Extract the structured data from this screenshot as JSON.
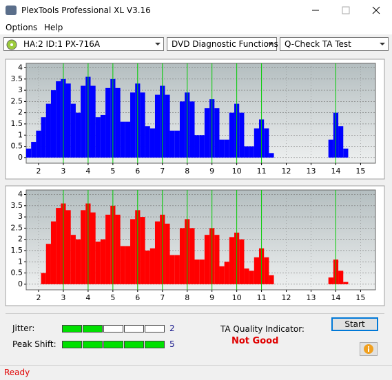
{
  "window": {
    "title": "PlexTools Professional XL V3.16"
  },
  "menu": [
    "Options",
    "Help"
  ],
  "toolbar": {
    "drive": "HA:2 ID:1  PX-716A",
    "function": "DVD Diagnostic Functions",
    "test": "Q-Check TA Test"
  },
  "chart_data": [
    {
      "type": "bar",
      "color": "#0000ff",
      "xlim": [
        1.5,
        15.6
      ],
      "ylim": [
        -0.25,
        4.2
      ],
      "xticks": [
        2,
        3,
        4,
        5,
        6,
        7,
        8,
        9,
        10,
        11,
        12,
        13,
        14,
        15
      ],
      "yticks": [
        0,
        0.5,
        1,
        1.5,
        2,
        2.5,
        3,
        3.5,
        4
      ],
      "grid": true,
      "markers": [
        3,
        4,
        5,
        6,
        7,
        8,
        9,
        10,
        11,
        14
      ],
      "marker_color": "#00cc00",
      "x": [
        1.6,
        1.8,
        2.0,
        2.2,
        2.4,
        2.6,
        2.8,
        3.0,
        3.2,
        3.4,
        3.6,
        3.8,
        4.0,
        4.2,
        4.4,
        4.6,
        4.8,
        5.0,
        5.2,
        5.4,
        5.6,
        5.8,
        6.0,
        6.2,
        6.4,
        6.6,
        6.8,
        7.0,
        7.2,
        7.4,
        7.6,
        7.8,
        8.0,
        8.2,
        8.4,
        8.6,
        8.8,
        9.0,
        9.2,
        9.4,
        9.6,
        9.8,
        10.0,
        10.2,
        10.4,
        10.6,
        10.8,
        11.0,
        11.2,
        11.4,
        13.8,
        14.0,
        14.2,
        14.4
      ],
      "values": [
        0.4,
        0.7,
        1.2,
        1.8,
        2.4,
        3.0,
        3.4,
        3.5,
        3.3,
        2.4,
        2.0,
        3.2,
        3.6,
        3.2,
        1.8,
        1.9,
        3.1,
        3.5,
        3.1,
        1.6,
        1.6,
        2.9,
        3.3,
        2.9,
        1.4,
        1.3,
        2.8,
        3.2,
        2.8,
        1.2,
        1.2,
        2.5,
        2.9,
        2.5,
        1.0,
        1.0,
        2.2,
        2.6,
        2.2,
        0.8,
        0.8,
        2.0,
        2.4,
        2.0,
        0.5,
        0.5,
        1.3,
        1.7,
        1.3,
        0.2,
        0.8,
        2.0,
        1.4,
        0.4
      ]
    },
    {
      "type": "bar",
      "color": "#ff0000",
      "xlim": [
        1.5,
        15.6
      ],
      "ylim": [
        -0.25,
        4.2
      ],
      "xticks": [
        2,
        3,
        4,
        5,
        6,
        7,
        8,
        9,
        10,
        11,
        12,
        13,
        14,
        15
      ],
      "yticks": [
        0,
        0.5,
        1,
        1.5,
        2,
        2.5,
        3,
        3.5,
        4
      ],
      "grid": true,
      "markers": [
        3,
        4,
        5,
        6,
        7,
        8,
        9,
        10,
        11,
        14
      ],
      "marker_color": "#00cc00",
      "x": [
        2.2,
        2.4,
        2.6,
        2.8,
        3.0,
        3.2,
        3.4,
        3.6,
        3.8,
        4.0,
        4.2,
        4.4,
        4.6,
        4.8,
        5.0,
        5.2,
        5.4,
        5.6,
        5.8,
        6.0,
        6.2,
        6.4,
        6.6,
        6.8,
        7.0,
        7.2,
        7.4,
        7.6,
        7.8,
        8.0,
        8.2,
        8.4,
        8.6,
        8.8,
        9.0,
        9.2,
        9.4,
        9.6,
        9.8,
        10.0,
        10.2,
        10.4,
        10.6,
        10.8,
        11.0,
        11.2,
        11.4,
        13.8,
        14.0,
        14.2,
        14.4
      ],
      "values": [
        0.5,
        1.8,
        2.8,
        3.4,
        3.6,
        3.3,
        2.2,
        2.0,
        3.3,
        3.6,
        3.2,
        1.9,
        2.0,
        3.1,
        3.5,
        3.1,
        1.7,
        1.7,
        2.9,
        3.3,
        3.0,
        1.5,
        1.6,
        2.8,
        3.1,
        2.7,
        1.3,
        1.3,
        2.5,
        2.9,
        2.5,
        1.1,
        1.1,
        2.2,
        2.5,
        2.2,
        0.8,
        1.0,
        2.1,
        2.3,
        2.0,
        0.7,
        0.6,
        1.2,
        1.6,
        1.2,
        0.4,
        0.3,
        1.1,
        0.6,
        0.1
      ]
    }
  ],
  "results": {
    "jitter": {
      "label": "Jitter:",
      "value": 2
    },
    "peak_shift": {
      "label": "Peak Shift:",
      "value": 5
    },
    "ta_quality": {
      "label": "TA Quality Indicator:",
      "value": "Not Good"
    }
  },
  "buttons": {
    "start": "Start"
  },
  "status": "Ready"
}
